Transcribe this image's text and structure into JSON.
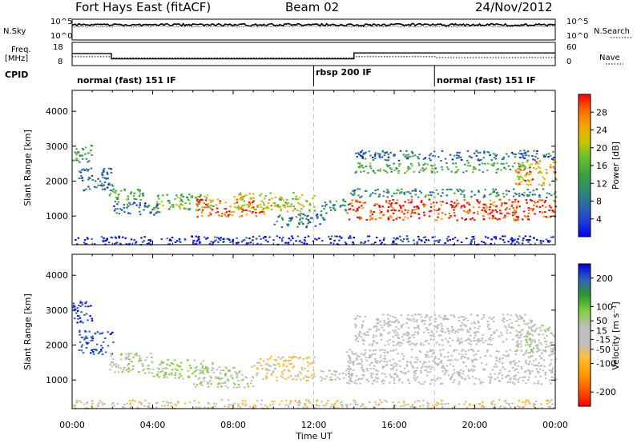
{
  "header": {
    "title": "Fort Hays East (fitACF)",
    "beam": "Beam 02",
    "date": "24/Nov/2012"
  },
  "noise_panel": {
    "left_label": "N.Sky",
    "right_label": "N.Search",
    "left_ticks": [
      "10^5",
      "10^0"
    ],
    "right_ticks": [
      "10^5",
      "10^0"
    ]
  },
  "freq_panel": {
    "left_label_1": "Freq.",
    "left_label_2": "[MHz]",
    "right_label": "Nave",
    "left_ticks": [
      "18",
      "8"
    ],
    "right_ticks": [
      "60",
      "0"
    ],
    "freq_steps": [
      {
        "start": 0.0,
        "end": 1.95,
        "value": 13.5
      },
      {
        "start": 1.95,
        "end": 14.0,
        "value": 10.5
      },
      {
        "start": 14.0,
        "end": 24.0,
        "value": 13.8
      }
    ],
    "nave_steps": [
      {
        "start": 0.0,
        "end": 1.95,
        "value": 22
      },
      {
        "start": 1.95,
        "end": 14.0,
        "value": 18
      },
      {
        "start": 14.0,
        "end": 18.1,
        "value": 22
      },
      {
        "start": 18.1,
        "end": 24.0,
        "value": 19
      }
    ]
  },
  "cpid": {
    "label": "CPID",
    "segments": [
      {
        "start": 0.0,
        "end": 12.0,
        "text": "normal (fast) 151 IF"
      },
      {
        "start": 12.0,
        "end": 18.0,
        "text": "rbsp 200 IF"
      },
      {
        "start": 18.0,
        "end": 24.0,
        "text": "normal (fast) 151 IF"
      }
    ]
  },
  "colors": {
    "power": [
      "#0000ff",
      "#1f3fd0",
      "#2a6aa8",
      "#2d8f6a",
      "#3fa23f",
      "#66c030",
      "#c9c400",
      "#f5a500",
      "#ff6a00",
      "#ff0000"
    ],
    "velocity": [
      "#ff0000",
      "#ff5500",
      "#ff9900",
      "#ffbb33",
      "#bfbfbf",
      "#bfbfbf",
      "#80d040",
      "#2d9a2d",
      "#3060c0",
      "#0000dd"
    ],
    "gridline": "#c8c8c8"
  },
  "chart_data": [
    {
      "type": "heatmap",
      "name": "power",
      "ylabel": "Slant Range [km]",
      "xlabel": "Time UT",
      "xlim": [
        0,
        24
      ],
      "ylim": [
        180,
        4600
      ],
      "x_ticks": [
        "00:00",
        "04:00",
        "08:00",
        "12:00",
        "16:00",
        "20:00",
        "00:00"
      ],
      "y_ticks": [
        1000,
        2000,
        3000,
        4000
      ],
      "colorbar": {
        "label": "Power [dB]",
        "range": [
          0,
          32
        ],
        "ticks": [
          4,
          8,
          12,
          16,
          20,
          24,
          28
        ]
      },
      "bands": [
        {
          "t": [
            0.0,
            1.0
          ],
          "r": [
            2500,
            3050
          ],
          "level": 0.45
        },
        {
          "t": [
            0.3,
            2.0
          ],
          "r": [
            1750,
            2450
          ],
          "level": 0.25
        },
        {
          "t": [
            1.8,
            3.5
          ],
          "r": [
            1350,
            1800
          ],
          "level": 0.45
        },
        {
          "t": [
            2.0,
            4.5
          ],
          "r": [
            1050,
            1400
          ],
          "level": 0.25
        },
        {
          "t": [
            4.0,
            7.0
          ],
          "r": [
            1200,
            1650
          ],
          "level": 0.5
        },
        {
          "t": [
            6.0,
            9.5
          ],
          "r": [
            1000,
            1500
          ],
          "level": 0.85
        },
        {
          "t": [
            8.0,
            12.0
          ],
          "r": [
            1150,
            1700
          ],
          "level": 0.65
        },
        {
          "t": [
            10.0,
            12.5
          ],
          "r": [
            700,
            1100
          ],
          "level": 0.3
        },
        {
          "t": [
            12.3,
            13.7
          ],
          "r": [
            1100,
            1500
          ],
          "level": 0.4
        },
        {
          "t": [
            13.6,
            24.0
          ],
          "r": [
            900,
            1500
          ],
          "level": 0.92
        },
        {
          "t": [
            13.8,
            24.0
          ],
          "r": [
            1550,
            1800
          ],
          "level": 0.35
        },
        {
          "t": [
            14.0,
            22.8
          ],
          "r": [
            2250,
            2550
          ],
          "level": 0.45
        },
        {
          "t": [
            14.0,
            24.0
          ],
          "r": [
            2600,
            2900
          ],
          "level": 0.25
        },
        {
          "t": [
            22.0,
            24.0
          ],
          "r": [
            1900,
            2600
          ],
          "level": 0.75
        },
        {
          "t": [
            0.0,
            24.0
          ],
          "r": [
            200,
            450
          ],
          "level": 0.1
        }
      ]
    },
    {
      "type": "heatmap",
      "name": "velocity",
      "ylabel": "Slant Range [km]",
      "xlabel": "Time UT",
      "xlim": [
        0,
        24
      ],
      "ylim": [
        180,
        4600
      ],
      "x_ticks": [
        "00:00",
        "04:00",
        "08:00",
        "12:00",
        "16:00",
        "20:00",
        "00:00"
      ],
      "y_ticks": [
        1000,
        2000,
        3000,
        4000
      ],
      "colorbar": {
        "label": "Velocity [m s⁻¹]",
        "range": [
          -250,
          250
        ],
        "ticks": [
          200,
          100,
          50,
          15,
          -15,
          -50,
          -100,
          -200
        ]
      },
      "bands": [
        {
          "t": [
            0.0,
            1.0
          ],
          "r": [
            2600,
            3300
          ],
          "level": 200
        },
        {
          "t": [
            0.3,
            2.0
          ],
          "r": [
            1750,
            2450
          ],
          "level": 180
        },
        {
          "t": [
            1.8,
            4.0
          ],
          "r": [
            1200,
            1800
          ],
          "level": 40
        },
        {
          "t": [
            4.0,
            7.0
          ],
          "r": [
            1050,
            1600
          ],
          "level": 60
        },
        {
          "t": [
            6.0,
            9.0
          ],
          "r": [
            800,
            1400
          ],
          "level": 35
        },
        {
          "t": [
            9.0,
            12.0
          ],
          "r": [
            1000,
            1700
          ],
          "level": -60
        },
        {
          "t": [
            12.3,
            13.8
          ],
          "r": [
            1000,
            1400
          ],
          "level": 30
        },
        {
          "t": [
            13.6,
            24.0
          ],
          "r": [
            900,
            1900
          ],
          "level": 0
        },
        {
          "t": [
            14.0,
            23.0
          ],
          "r": [
            2000,
            2900
          ],
          "level": 5
        },
        {
          "t": [
            22.0,
            24.0
          ],
          "r": [
            1800,
            2600
          ],
          "level": 40
        },
        {
          "t": [
            0.0,
            24.0
          ],
          "r": [
            200,
            450
          ],
          "level": -40
        }
      ]
    }
  ]
}
